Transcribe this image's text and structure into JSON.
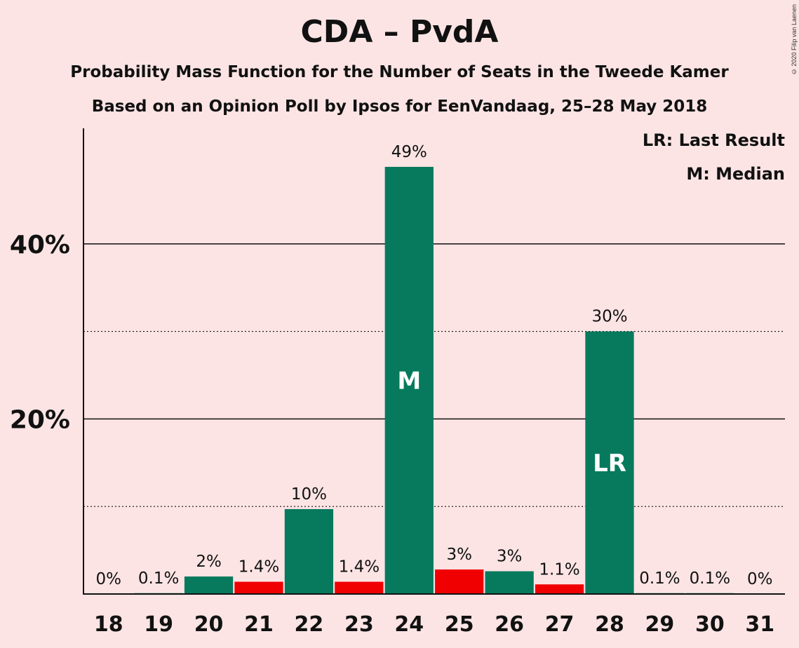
{
  "chart_data": {
    "type": "bar",
    "title": "CDA – PvdA",
    "subtitle": "Probability Mass Function for the Number of Seats in the Tweede Kamer",
    "subtitle2": "Based on an Opinion Poll by Ipsos for EenVandaag, 25–28 May 2018",
    "copyright": "© 2020 Filip van Laenen",
    "legend": [
      "LR: Last Result",
      "M: Median"
    ],
    "legend_position": "top-right",
    "categories": [
      "18",
      "19",
      "20",
      "21",
      "22",
      "23",
      "24",
      "25",
      "26",
      "27",
      "28",
      "29",
      "30",
      "31"
    ],
    "values": [
      0,
      0.1,
      2,
      1.4,
      9.7,
      1.4,
      48.8,
      2.8,
      2.6,
      1.1,
      30.0,
      0.1,
      0.1,
      0
    ],
    "value_labels": [
      "0%",
      "0.1%",
      "2%",
      "1.4%",
      "10%",
      "1.4%",
      "49%",
      "3%",
      "3%",
      "1.1%",
      "30%",
      "0.1%",
      "0.1%",
      "0%"
    ],
    "bar_colors": [
      "#077a5d",
      "#077a5d",
      "#077a5d",
      "#f00000",
      "#077a5d",
      "#f00000",
      "#077a5d",
      "#f00000",
      "#077a5d",
      "#f00000",
      "#077a5d",
      "#077a5d",
      "#077a5d",
      "#077a5d"
    ],
    "bar_markers": {
      "24": "M",
      "28": "LR"
    },
    "yticks": [
      20,
      40
    ],
    "ytick_labels": [
      "20%",
      "40%"
    ],
    "minor_grid": [
      10,
      30
    ],
    "ylim": [
      0,
      53.2
    ],
    "grid": true
  }
}
